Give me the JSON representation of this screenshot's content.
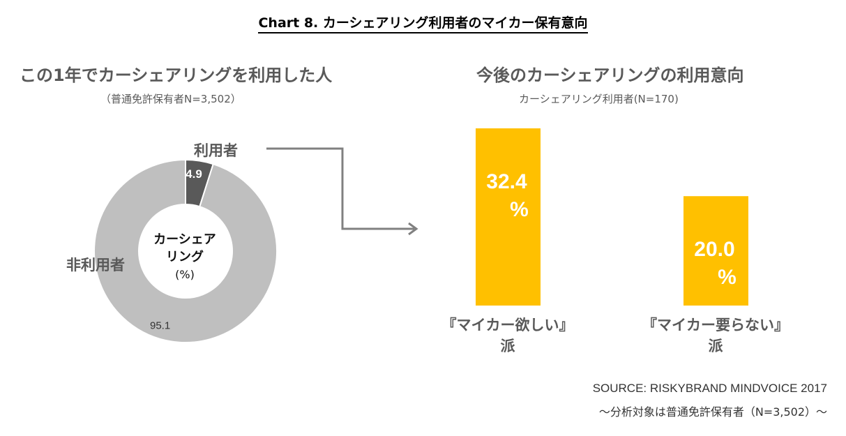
{
  "header": {
    "title": "Chart 8. カーシェアリング利用者のマイカー保有意向"
  },
  "left_panel": {
    "title": "この1年でカーシェアリングを利用した人",
    "subtitle": "（普通免許保有者N=3,502）",
    "center_label_line1": "カーシェア",
    "center_label_line2": "リング",
    "center_unit": "(%)",
    "user_label": "利用者",
    "nonuser_label": "非利用者"
  },
  "right_panel": {
    "title": "今後のカーシェアリングの利用意向",
    "subtitle": "カーシェアリング利用者(N=170)"
  },
  "footer": {
    "source": "SOURCE: RISKYBRAND MINDVOICE 2017",
    "note": "～分析対象は普通免許保有者（N=3,502）～"
  },
  "colors": {
    "user_slice": "#595959",
    "nonuser_slice": "#bfbfbf",
    "bar": "#ffc000",
    "arrow": "#808080"
  },
  "chart_data": [
    {
      "type": "pie",
      "variant": "donut",
      "categories": [
        "利用者",
        "非利用者"
      ],
      "values": [
        4.9,
        95.1
      ],
      "value_labels": [
        "4.9",
        "95.1"
      ],
      "unit": "%"
    },
    {
      "type": "bar",
      "categories": [
        "『マイカー欲しい』派",
        "『マイカー要らない』派"
      ],
      "category_lines": [
        [
          "『マイカー欲しい』",
          "派"
        ],
        [
          "『マイカー要らない』",
          "派"
        ]
      ],
      "values": [
        32.4,
        20.0
      ],
      "value_labels": [
        [
          "32.4",
          "%"
        ],
        [
          "20.0",
          "%"
        ]
      ],
      "unit": "%"
    }
  ]
}
